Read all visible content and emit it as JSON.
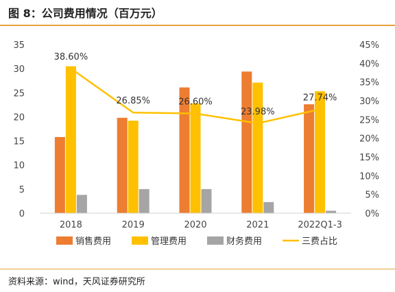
{
  "title": "图 8：公司费用情况（百万元）",
  "source": "资料来源：wind，天风证券研究所",
  "colors": {
    "销售费用": "#ED7D31",
    "管理费用": "#FFC000",
    "财务费用": "#A5A5A5",
    "三费占比": "#FFC000",
    "accent_rule": "#E6A23C"
  },
  "chart_data": {
    "type": "bar",
    "categories": [
      "2018",
      "2019",
      "2020",
      "2021",
      "2022Q1-3"
    ],
    "series": [
      {
        "name": "销售费用",
        "type": "bar",
        "axis": "left",
        "values": [
          15.8,
          19.8,
          26.1,
          29.4,
          22.6
        ]
      },
      {
        "name": "管理费用",
        "type": "bar",
        "axis": "left",
        "values": [
          30.5,
          19.2,
          22.8,
          27.1,
          25.3
        ]
      },
      {
        "name": "财务费用",
        "type": "bar",
        "axis": "left",
        "values": [
          3.8,
          5.0,
          5.0,
          2.3,
          0.5
        ]
      },
      {
        "name": "三费占比",
        "type": "line",
        "axis": "right",
        "values": [
          38.6,
          26.85,
          26.6,
          23.98,
          27.74
        ],
        "labels": [
          "38.60%",
          "26.85%",
          "26.60%",
          "23.98%",
          "27.74%"
        ]
      }
    ],
    "yleft": {
      "min": 0,
      "max": 35,
      "ticks": [
        "0",
        "5",
        "10",
        "15",
        "20",
        "25",
        "30",
        "35"
      ]
    },
    "yright": {
      "min": 0,
      "max": 45,
      "ticks": [
        "0%",
        "5%",
        "10%",
        "15%",
        "20%",
        "25%",
        "30%",
        "35%",
        "40%",
        "45%"
      ]
    },
    "legend": [
      "销售费用",
      "管理费用",
      "财务费用",
      "三费占比"
    ],
    "legend_position": "bottom",
    "grid": false
  }
}
